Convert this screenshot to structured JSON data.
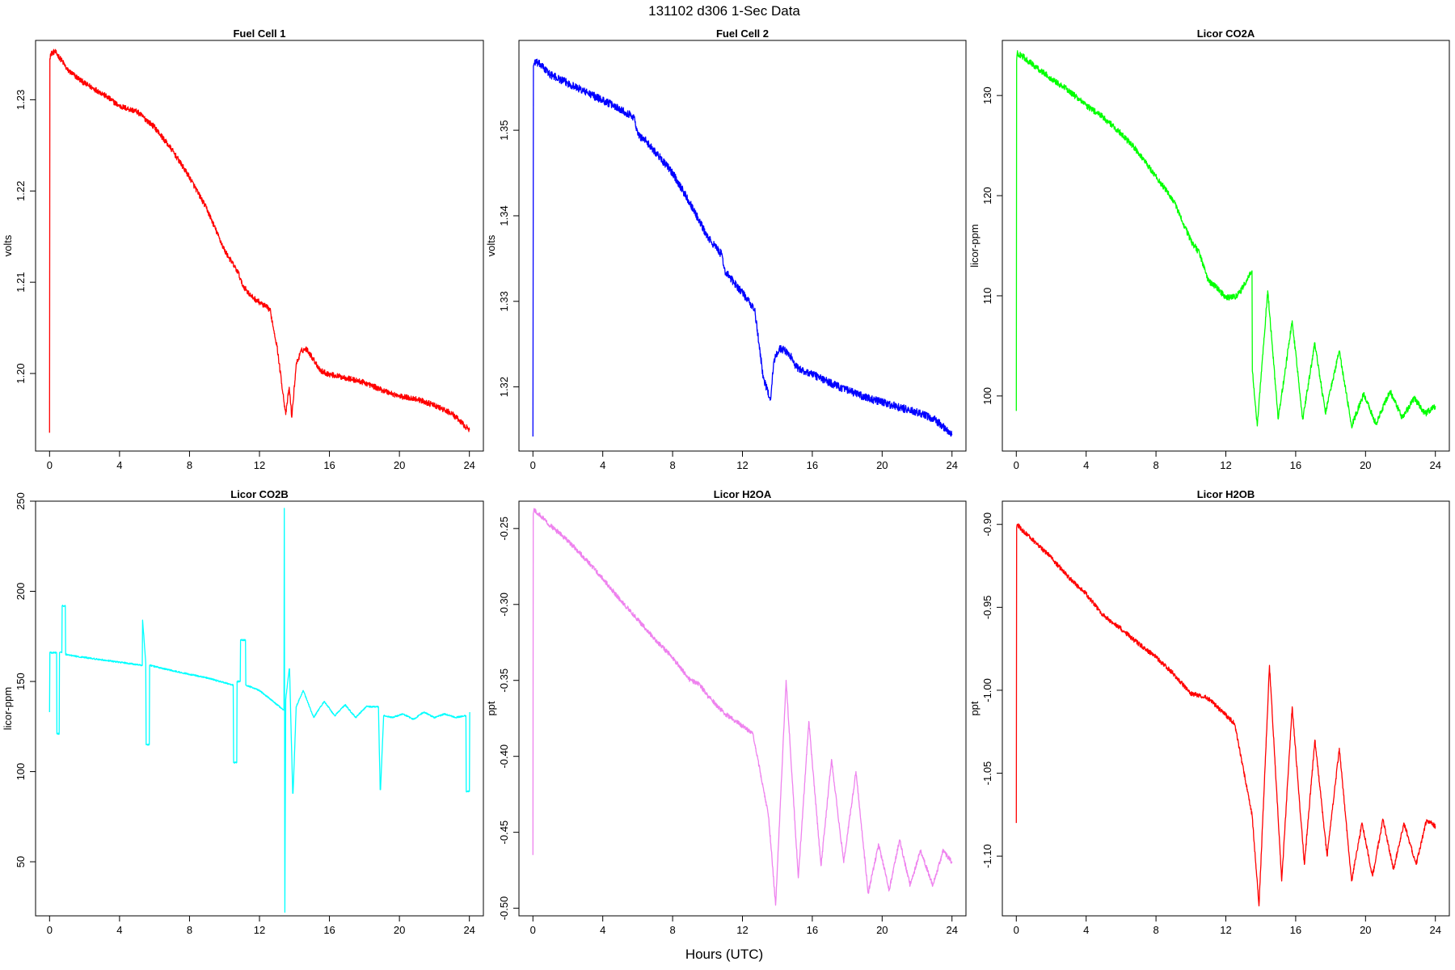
{
  "figure": {
    "title": "131102   d306   1-Sec Data",
    "xlabel": "Hours (UTC)"
  },
  "chart_data": [
    {
      "type": "line",
      "title": "Fuel Cell 1",
      "ylabel": "volts",
      "color": "#ff0000",
      "xlim": [
        -0.8,
        24.8
      ],
      "ylim": [
        1.1915,
        1.2365
      ],
      "xticks": [
        0,
        4,
        8,
        12,
        16,
        20,
        24
      ],
      "yticks": [
        1.2,
        1.21,
        1.22,
        1.23
      ],
      "ytick_labels": [
        "1.20",
        "1.21",
        "1.22",
        "1.23"
      ],
      "noise": 0.0003,
      "x": [
        0,
        0.02,
        0.05,
        0.3,
        0.5,
        0.8,
        1,
        2,
        3,
        4,
        5,
        6,
        7,
        8,
        9,
        10,
        10.8,
        11,
        11.5,
        12,
        12.6,
        13,
        13.5,
        13.7,
        13.85,
        14.1,
        14.4,
        14.7,
        15,
        15.5,
        16,
        17,
        18,
        19,
        20,
        21,
        22,
        23,
        24
      ],
      "y": [
        1.1935,
        1.2345,
        1.235,
        1.2353,
        1.2348,
        1.234,
        1.2333,
        1.2318,
        1.2307,
        1.2293,
        1.2287,
        1.227,
        1.2245,
        1.2215,
        1.218,
        1.2135,
        1.211,
        1.2098,
        1.2085,
        1.2078,
        1.207,
        1.203,
        1.1955,
        1.1985,
        1.1952,
        1.201,
        1.2025,
        1.2027,
        1.2018,
        1.2003,
        1.1999,
        1.1995,
        1.199,
        1.1982,
        1.1975,
        1.1972,
        1.1965,
        1.1956,
        1.1938
      ]
    },
    {
      "type": "line",
      "title": "Fuel Cell 2",
      "ylabel": "volts",
      "color": "#0000ff",
      "xlim": [
        -0.8,
        24.8
      ],
      "ylim": [
        1.3125,
        1.3605
      ],
      "xticks": [
        0,
        4,
        8,
        12,
        16,
        20,
        24
      ],
      "yticks": [
        1.32,
        1.33,
        1.34,
        1.35
      ],
      "ytick_labels": [
        "1.32",
        "1.33",
        "1.34",
        "1.35"
      ],
      "noise": 0.00045,
      "x": [
        0,
        0.03,
        0.1,
        0.4,
        1,
        2,
        3,
        4,
        5,
        5.8,
        6,
        6.5,
        7,
        8,
        9,
        10,
        10.8,
        11,
        12,
        12.7,
        13.2,
        13.6,
        13.8,
        14.1,
        14.4,
        14.8,
        15,
        15.3,
        16,
        17,
        18,
        19,
        20,
        21,
        22,
        23,
        24
      ],
      "y": [
        1.3142,
        1.3575,
        1.358,
        1.3577,
        1.3565,
        1.3555,
        1.3545,
        1.3535,
        1.3525,
        1.3515,
        1.3495,
        1.3487,
        1.3475,
        1.345,
        1.3415,
        1.3375,
        1.3355,
        1.3335,
        1.331,
        1.329,
        1.321,
        1.3185,
        1.323,
        1.3245,
        1.3243,
        1.3235,
        1.3225,
        1.322,
        1.3215,
        1.3205,
        1.3196,
        1.3188,
        1.3182,
        1.3176,
        1.317,
        1.3162,
        1.3145
      ]
    },
    {
      "type": "line",
      "title": "Licor CO2A",
      "ylabel": "licor-ppm",
      "color": "#00ff00",
      "xlim": [
        -0.8,
        24.8
      ],
      "ylim": [
        94.5,
        135.5
      ],
      "xticks": [
        0,
        4,
        8,
        12,
        16,
        20,
        24
      ],
      "yticks": [
        100,
        110,
        120,
        130
      ],
      "ytick_labels": [
        "100",
        "110",
        "120",
        "130"
      ],
      "noise": 0.3,
      "x": [
        0,
        0.02,
        0.05,
        0.3,
        1,
        2,
        3,
        4,
        5,
        6,
        7,
        8,
        9,
        10,
        10.5,
        11,
        11.5,
        12,
        12.5,
        12.8,
        13.5,
        13.52,
        13.8,
        14.4,
        15.0,
        15.8,
        16.4,
        17.1,
        17.7,
        18.5,
        19.2,
        19.9,
        20.6,
        21.4,
        22.1,
        22.8,
        23.4,
        24
      ],
      "y": [
        98.5,
        133.5,
        134.2,
        134.0,
        133.0,
        131.7,
        130.5,
        129.0,
        127.8,
        126.2,
        124.3,
        121.9,
        119.5,
        115.5,
        114.2,
        111.5,
        110.8,
        109.8,
        109.9,
        110.3,
        112.5,
        102.5,
        97.0,
        110.5,
        97.7,
        107.5,
        97.7,
        105.3,
        98.3,
        104.5,
        97.0,
        100.2,
        97.2,
        100.5,
        97.8,
        99.8,
        98.2,
        99.0
      ]
    },
    {
      "type": "line",
      "title": "Licor CO2B",
      "ylabel": "licor-ppm",
      "color": "#00ffff",
      "xlim": [
        -0.8,
        24.8
      ],
      "ylim": [
        20,
        250
      ],
      "xticks": [
        0,
        4,
        8,
        12,
        16,
        20,
        24
      ],
      "yticks": [
        50,
        100,
        150,
        200,
        250
      ],
      "ytick_labels": [
        "50",
        "100",
        "150",
        "200",
        "250"
      ],
      "noise": 0.4,
      "x": [
        0,
        0.02,
        0.4,
        0.42,
        0.55,
        0.57,
        0.7,
        0.72,
        0.9,
        0.92,
        1.5,
        3,
        5.3,
        5.32,
        5.5,
        5.52,
        5.7,
        5.72,
        7,
        9,
        10.5,
        10.52,
        10.7,
        10.72,
        10.9,
        10.92,
        11.2,
        11.22,
        12,
        13.4,
        13.42,
        13.45,
        13.5,
        13.7,
        13.72,
        13.9,
        13.92,
        14.1,
        14.5,
        15.1,
        15.7,
        16.3,
        16.9,
        17.5,
        18.1,
        18.8,
        18.9,
        18.92,
        19.1,
        19.12,
        19.6,
        20.2,
        20.8,
        21.4,
        22.0,
        22.6,
        23.2,
        23.8,
        23.82,
        24.0,
        24.02
      ],
      "y": [
        133,
        166,
        166,
        121,
        121,
        166,
        166,
        192,
        192,
        165,
        164,
        162,
        159,
        184,
        160,
        115,
        115,
        159,
        156,
        152,
        148,
        105,
        105,
        150,
        150,
        173,
        173,
        148,
        145,
        134,
        246,
        22,
        140,
        157,
        157,
        88,
        88,
        136,
        145,
        130,
        139,
        131,
        137,
        130,
        136,
        136,
        90,
        90,
        131,
        131,
        130,
        132,
        129,
        133,
        130,
        132,
        130,
        131,
        89,
        89,
        133
      ]
    },
    {
      "type": "line",
      "title": "Licor H2OA",
      "ylabel": "ppt",
      "color": "#ee82ee",
      "xlim": [
        -0.8,
        24.8
      ],
      "ylim": [
        -0.505,
        -0.232
      ],
      "xticks": [
        0,
        4,
        8,
        12,
        16,
        20,
        24
      ],
      "yticks": [
        -0.5,
        -0.45,
        -0.4,
        -0.35,
        -0.3,
        -0.25
      ],
      "ytick_labels": [
        "-0.50",
        "-0.45",
        "-0.40",
        "-0.35",
        "-0.30",
        "-0.25"
      ],
      "noise": 0.0015,
      "x": [
        0,
        0.02,
        0.05,
        0.3,
        1,
        2,
        3,
        4,
        5,
        6,
        7,
        8,
        9,
        9.5,
        10,
        11,
        12,
        12.6,
        13.5,
        13.9,
        14.5,
        15.2,
        15.8,
        16.5,
        17.1,
        17.8,
        18.5,
        19.2,
        19.8,
        20.4,
        21.0,
        21.6,
        22.2,
        22.9,
        23.5,
        24
      ],
      "y": [
        -0.465,
        -0.24,
        -0.238,
        -0.24,
        -0.248,
        -0.258,
        -0.27,
        -0.283,
        -0.297,
        -0.31,
        -0.323,
        -0.335,
        -0.35,
        -0.352,
        -0.36,
        -0.372,
        -0.38,
        -0.385,
        -0.44,
        -0.498,
        -0.35,
        -0.48,
        -0.377,
        -0.472,
        -0.402,
        -0.47,
        -0.41,
        -0.49,
        -0.458,
        -0.488,
        -0.455,
        -0.485,
        -0.462,
        -0.485,
        -0.462,
        -0.47
      ]
    },
    {
      "type": "line",
      "title": "Licor H2OB",
      "ylabel": "ppt",
      "color": "#ff0000",
      "xlim": [
        -0.8,
        24.8
      ],
      "ylim": [
        -1.136,
        -0.886
      ],
      "xticks": [
        0,
        4,
        8,
        12,
        16,
        20,
        24
      ],
      "yticks": [
        -1.1,
        -1.05,
        -1.0,
        -0.95,
        -0.9
      ],
      "ytick_labels": [
        "-1.10",
        "-1.05",
        "-1.00",
        "-0.95",
        "-0.90"
      ],
      "noise": 0.0014,
      "x": [
        0,
        0.02,
        0.05,
        0.3,
        1,
        2,
        3,
        4,
        5,
        6,
        7,
        8,
        9,
        10,
        10.5,
        11,
        12,
        12.5,
        13.5,
        13.9,
        14.5,
        15.2,
        15.8,
        16.5,
        17.1,
        17.8,
        18.5,
        19.2,
        19.8,
        20.4,
        21.0,
        21.6,
        22.2,
        22.9,
        23.5,
        24
      ],
      "y": [
        -1.08,
        -0.902,
        -0.9,
        -0.903,
        -0.91,
        -0.92,
        -0.932,
        -0.942,
        -0.955,
        -0.963,
        -0.972,
        -0.98,
        -0.99,
        -1.002,
        -1.003,
        -1.005,
        -1.015,
        -1.02,
        -1.075,
        -1.13,
        -0.985,
        -1.115,
        -1.01,
        -1.105,
        -1.03,
        -1.1,
        -1.035,
        -1.115,
        -1.08,
        -1.112,
        -1.078,
        -1.108,
        -1.08,
        -1.105,
        -1.078,
        -1.082
      ]
    }
  ]
}
